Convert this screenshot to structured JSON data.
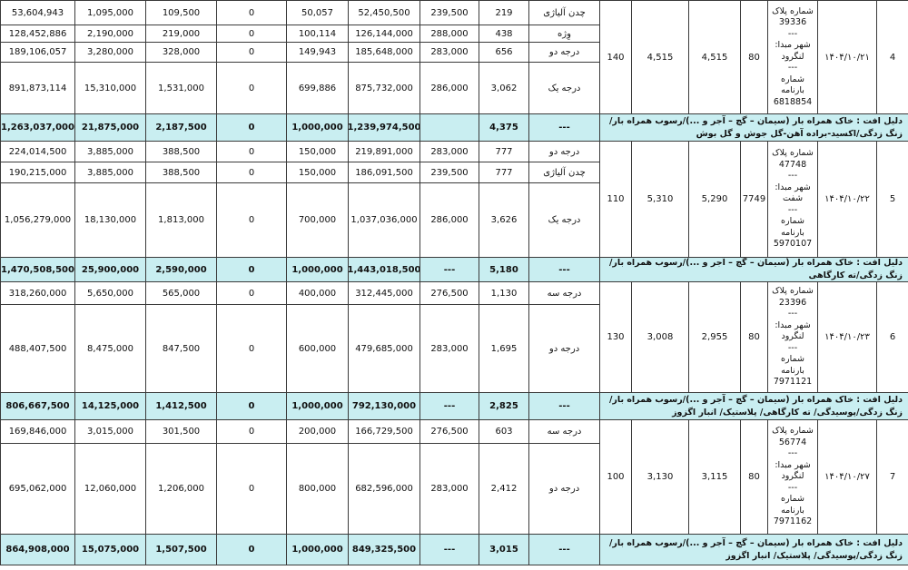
{
  "table": {
    "groups": [
      {
        "row_number": "4",
        "date": "۱۴۰۴/۱۰/۲۱",
        "plate_info": [
          "شماره پلاک",
          "39336",
          "---",
          "شهر مبدا:",
          "لنگرود",
          "---",
          "شماره بارنامه",
          "6818854"
        ],
        "extra": [
          "140",
          "4,515",
          "4,515",
          "80"
        ],
        "rows": [
          [
            "53,604,943",
            "1,095,000",
            "109,500",
            "0",
            "50,057",
            "52,450,500",
            "239,500",
            "219",
            "چدن آلیاژی"
          ],
          [
            "128,452,886",
            "2,190,000",
            "219,000",
            "0",
            "100,114",
            "126,144,000",
            "288,000",
            "438",
            "وِژه"
          ],
          [
            "189,106,057",
            "3,280,000",
            "328,000",
            "0",
            "149,943",
            "185,648,000",
            "283,000",
            "656",
            "درجه دو"
          ],
          [
            "891,873,114",
            "15,310,000",
            "1,531,000",
            "0",
            "699,886",
            "875,732,000",
            "286,000",
            "3,062",
            "درجه یک"
          ]
        ],
        "summary": [
          "1,263,037,000",
          "21,875,000",
          "2,187,500",
          "0",
          "1,000,000",
          "1,239,974,500",
          null,
          "4,375",
          "---"
        ],
        "reason": "دلیل افت : خاک همراه بار (سیمان – گچ – آجر و ...)/رسوب همراه بار/زنگ زدگی/اکسید-براده آهن-گل جوش و گل بوش"
      },
      {
        "row_number": "5",
        "date": "۱۴۰۴/۱۰/۲۲",
        "plate_info": [
          "شماره پلاک",
          "47748",
          "---",
          "شهر مبدا:",
          "شفت",
          "---",
          "شماره بارنامه",
          "5970107"
        ],
        "extra": [
          "110",
          "5,310",
          "5,290",
          "7749"
        ],
        "rows": [
          [
            "224,014,500",
            "3,885,000",
            "388,500",
            "0",
            "150,000",
            "219,891,000",
            "283,000",
            "777",
            "درجه دو"
          ],
          [
            "190,215,000",
            "3,885,000",
            "388,500",
            "0",
            "150,000",
            "186,091,500",
            "239,500",
            "777",
            "چدن آلیاژی"
          ],
          [
            "1,056,279,000",
            "18,130,000",
            "1,813,000",
            "0",
            "700,000",
            "1,037,036,000",
            "286,000",
            "3,626",
            "درجه یک"
          ]
        ],
        "summary": [
          "1,470,508,500",
          "25,900,000",
          "2,590,000",
          "0",
          "1,000,000",
          "1,443,018,500",
          "---",
          "5,180",
          "---"
        ],
        "reason": "دلیل افت : خاک همراه بار (سیمان – گچ – آجر و ...)/رسوب همراه بار/زنگ زدگی/ته کارگاهی"
      },
      {
        "row_number": "6",
        "date": "۱۴۰۴/۱۰/۲۳",
        "plate_info": [
          "شماره پلاک",
          "23396",
          "---",
          "شهر مبدا:",
          "لنگرود",
          "---",
          "شماره بارنامه",
          "7971121"
        ],
        "extra": [
          "130",
          "3,008",
          "2,955",
          "80"
        ],
        "rows": [
          [
            "318,260,000",
            "5,650,000",
            "565,000",
            "0",
            "400,000",
            "312,445,000",
            "276,500",
            "1,130",
            "درجه سه"
          ],
          [
            "488,407,500",
            "8,475,000",
            "847,500",
            "0",
            "600,000",
            "479,685,000",
            "283,000",
            "1,695",
            "درجه دو"
          ]
        ],
        "summary": [
          "806,667,500",
          "14,125,000",
          "1,412,500",
          "0",
          "1,000,000",
          "792,130,000",
          "---",
          "2,825",
          "---"
        ],
        "reason": "دلیل افت : خاک همراه بار (سیمان – گچ – آجر و ...)/رسوب همراه بار/زنگ زدگی/پوسیدگی/ ته کارگاهی/ پلاستیک/ انبار اگزوز"
      },
      {
        "row_number": "7",
        "date": "۱۴۰۴/۱۰/۲۷",
        "plate_info": [
          "شماره پلاک",
          "56774",
          "---",
          "شهر مبدا:",
          "لنگرود",
          "---",
          "شماره بارنامه",
          "7971162"
        ],
        "extra": [
          "100",
          "3,130",
          "3,115",
          "80"
        ],
        "rows": [
          [
            "169,846,000",
            "3,015,000",
            "301,500",
            "0",
            "200,000",
            "166,729,500",
            "276,500",
            "603",
            "درجه سه"
          ],
          [
            "695,062,000",
            "12,060,000",
            "1,206,000",
            "0",
            "800,000",
            "682,596,000",
            "283,000",
            "2,412",
            "درجه دو"
          ]
        ],
        "summary": [
          "864,908,000",
          "15,075,000",
          "1,507,500",
          "0",
          "1,000,000",
          "849,325,500",
          "---",
          "3,015",
          "---"
        ],
        "reason": "دلیل افت : خاک همراه بار (سیمان – گچ – آجر و ...)/رسوب همراه بار/زنگ زدگی/پوسیدگی/ پلاستیک/ انبار اگزوز"
      }
    ]
  }
}
